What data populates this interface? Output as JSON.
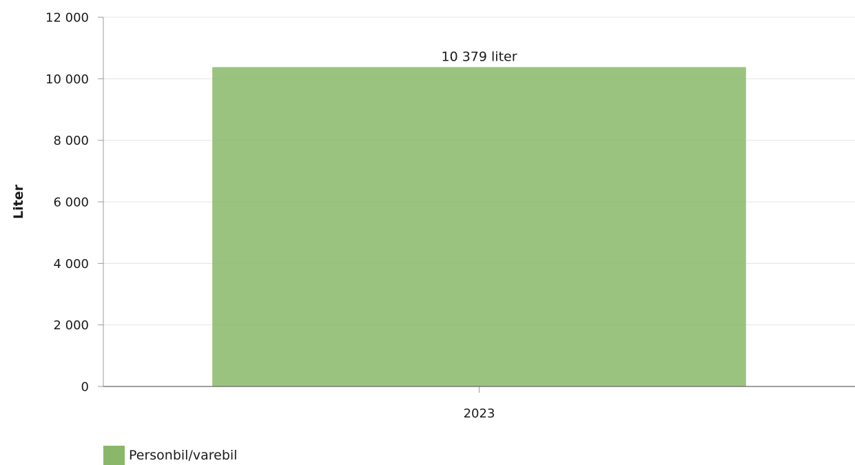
{
  "chart_data": {
    "type": "bar",
    "categories": [
      "2023"
    ],
    "series": [
      {
        "name": "Personbil/varebil",
        "values": [
          10379
        ],
        "color": "#8ab86a"
      }
    ],
    "data_labels": [
      "10 379 liter"
    ],
    "ylabel": "Liter",
    "xlabel": "",
    "ylim": [
      0,
      12000
    ],
    "yticks": [
      0,
      2000,
      4000,
      6000,
      8000,
      10000,
      12000
    ],
    "ytick_labels": [
      "0",
      "2 000",
      "4 000",
      "6 000",
      "8 000",
      "10 000",
      "12 000"
    ],
    "grid": true,
    "legend_position": "bottom-left"
  }
}
